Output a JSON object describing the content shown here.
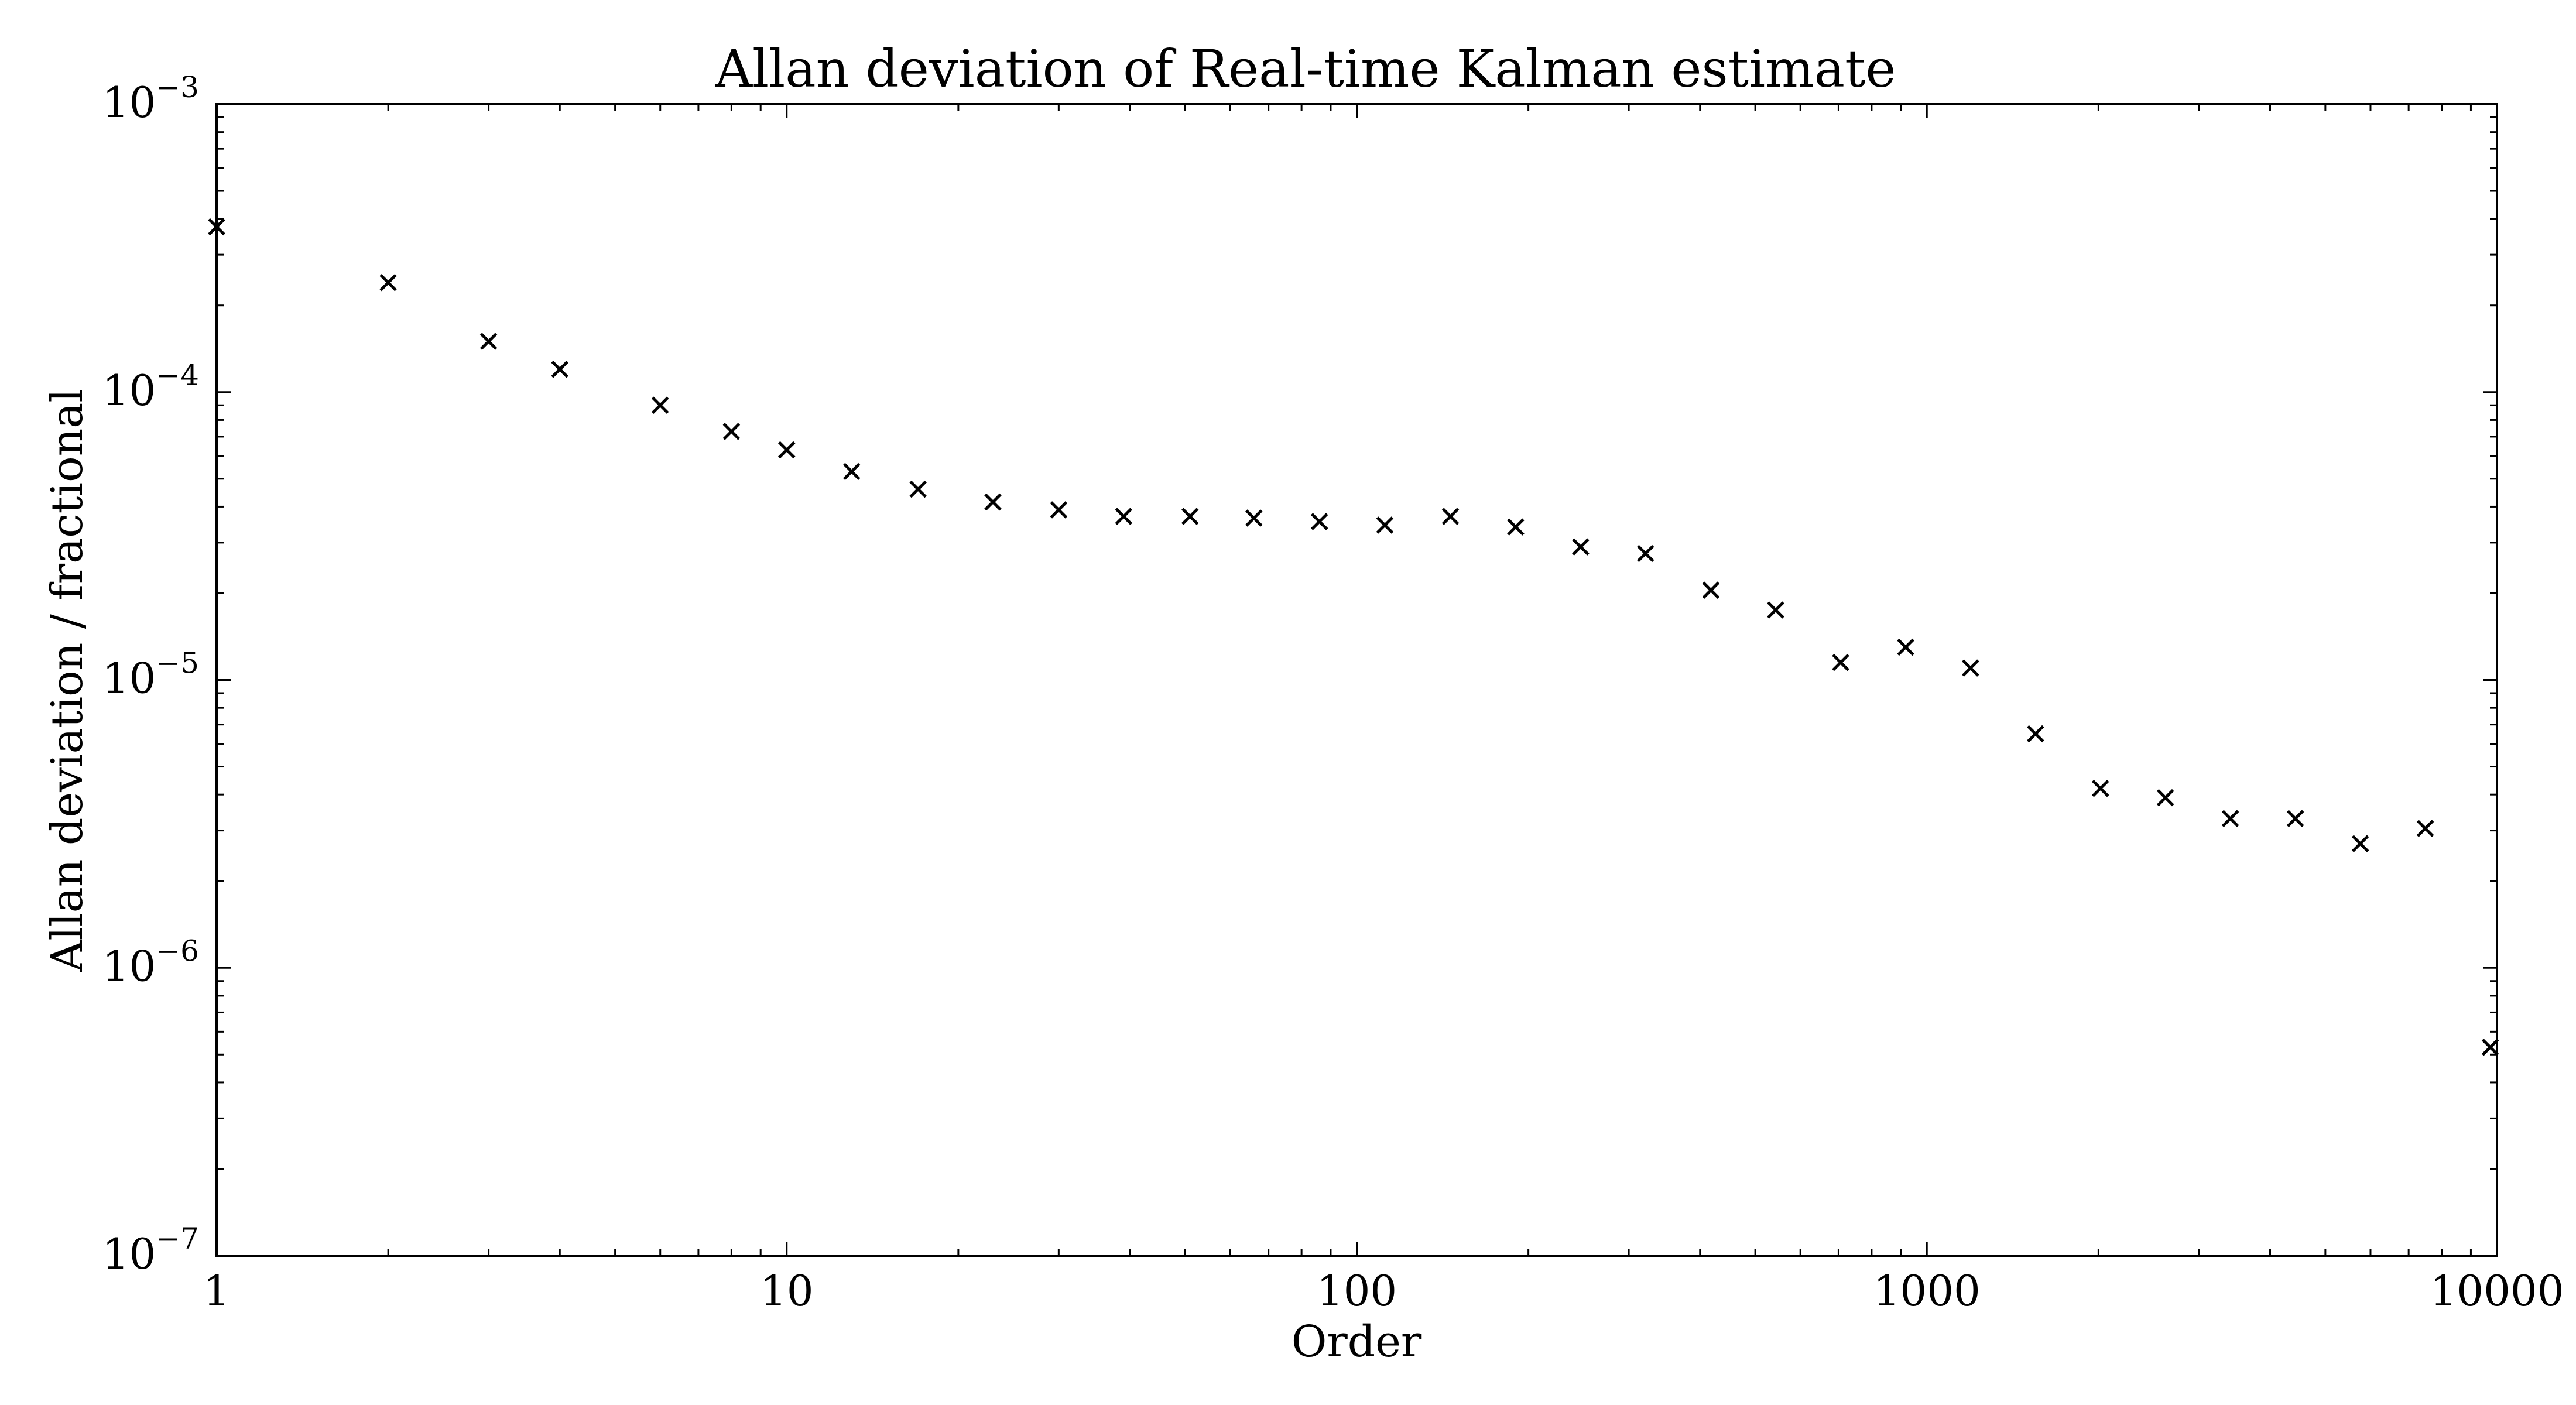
{
  "chart_data": {
    "type": "scatter",
    "title": "Allan deviation of Real-time Kalman estimate",
    "xlabel": "Order",
    "ylabel": "Allan deviation / fractional",
    "x_scale": "log",
    "y_scale": "log",
    "xlim": [
      1,
      10000
    ],
    "ylim": [
      1e-07,
      0.001
    ],
    "x_ticks": [
      {
        "value": 1,
        "label": "1"
      },
      {
        "value": 10,
        "label": "10"
      },
      {
        "value": 100,
        "label": "100"
      },
      {
        "value": 1000,
        "label": "1000"
      },
      {
        "value": 10000,
        "label": "10000"
      }
    ],
    "y_ticks": [
      {
        "value": 1e-07,
        "base": "10",
        "exp": "−7"
      },
      {
        "value": 1e-06,
        "base": "10",
        "exp": "−6"
      },
      {
        "value": 1e-05,
        "base": "10",
        "exp": "−5"
      },
      {
        "value": 0.0001,
        "base": "10",
        "exp": "−4"
      },
      {
        "value": 0.001,
        "base": "10",
        "exp": "−3"
      }
    ],
    "grid": false,
    "marker": "x",
    "marker_color": "#000000",
    "series": [
      {
        "x": [
          1,
          2,
          3,
          4,
          6,
          8,
          10,
          13,
          17,
          23,
          30,
          39,
          51,
          66,
          86,
          112,
          146,
          190,
          247,
          321,
          418,
          543,
          706,
          918,
          1193,
          1551,
          2016,
          2621,
          3407,
          4430,
          5759,
          7487,
          9733
        ],
        "y": [
          0.000375,
          0.00024,
          0.00015,
          0.00012,
          9e-05,
          7.3e-05,
          6.3e-05,
          5.3e-05,
          4.6e-05,
          4.15e-05,
          3.9e-05,
          3.7e-05,
          3.7e-05,
          3.65e-05,
          3.55e-05,
          3.45e-05,
          3.7e-05,
          3.4e-05,
          2.9e-05,
          2.75e-05,
          2.05e-05,
          1.75e-05,
          1.15e-05,
          1.3e-05,
          1.1e-05,
          6.5e-06,
          4.2e-06,
          3.9e-06,
          3.3e-06,
          3.3e-06,
          2.7e-06,
          3.05e-06,
          5.3e-07
        ]
      }
    ]
  }
}
